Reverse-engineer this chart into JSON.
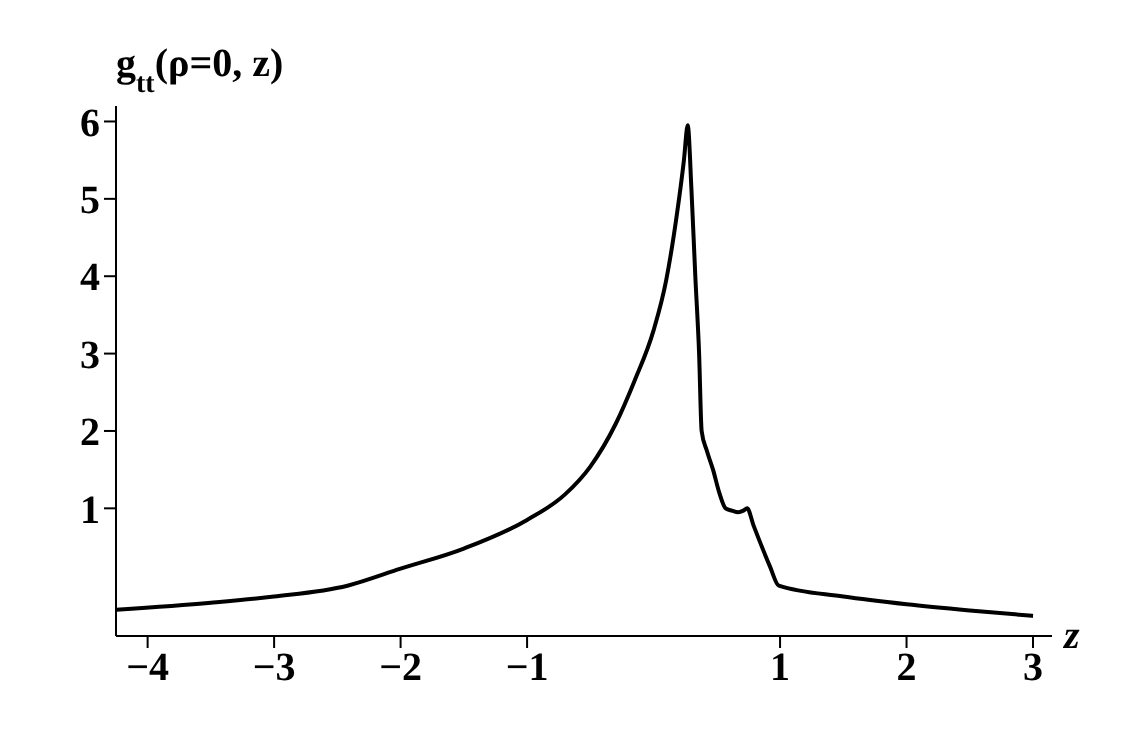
{
  "chart_data": {
    "type": "line",
    "xlabel": "z",
    "ylabel": "g$_{tt}$(ρ=0, z)",
    "x": [
      -4.25,
      -3.5,
      -3,
      -2.42,
      -2,
      -1.5,
      -1,
      -0.7,
      -0.5,
      -0.3,
      -0.15,
      0,
      0.1,
      0.18,
      0.24,
      0.27,
      0.3,
      0.33,
      0.36,
      0.38,
      0.42,
      0.47,
      0.52,
      0.57,
      0.62,
      0.67,
      0.71,
      0.74,
      0.79,
      0.84,
      0.92,
      0.99,
      1.5,
      2,
      2.5,
      3
    ],
    "series": [
      {
        "color": "#000000",
        "values": [
          -0.31,
          -0.22,
          -0.14,
          0,
          0.22,
          0.48,
          0.85,
          1.18,
          1.54,
          2.09,
          2.65,
          3.3,
          3.95,
          4.75,
          5.5,
          5.95,
          5.1,
          4.0,
          3.0,
          2.0,
          1.75,
          1.5,
          1.2,
          1.0,
          0.97,
          0.95,
          0.97,
          1.0,
          0.78,
          0.57,
          0.25,
          0,
          -0.14,
          -0.24,
          -0.32,
          -0.39
        ]
      }
    ],
    "xlim": [
      -4.25,
      3.15
    ],
    "ylim": [
      -0.65,
      6.2
    ],
    "xticks": [
      -4,
      -3,
      -2,
      -1,
      1,
      2,
      3
    ],
    "yticks": [
      1,
      2,
      3,
      4,
      5,
      6
    ],
    "grid": false,
    "legend": false,
    "marker": "none",
    "line_style": "solid"
  }
}
